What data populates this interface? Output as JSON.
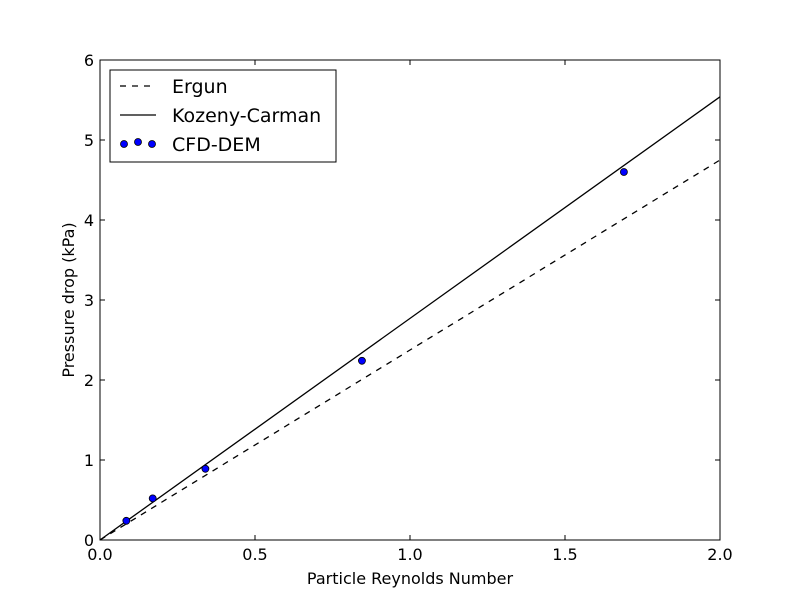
{
  "chart_data": {
    "type": "line",
    "title": "",
    "xlabel": "Particle Reynolds Number",
    "ylabel": "Pressure drop (kPa)",
    "xlim": [
      0.0,
      2.0
    ],
    "ylim": [
      0,
      6
    ],
    "xticks": [
      0.0,
      0.5,
      1.0,
      1.5,
      2.0
    ],
    "xtick_labels": [
      "0.0",
      "0.5",
      "1.0",
      "1.5",
      "2.0"
    ],
    "yticks": [
      0,
      1,
      2,
      3,
      4,
      5,
      6
    ],
    "ytick_labels": [
      "0",
      "1",
      "2",
      "3",
      "4",
      "5",
      "6"
    ],
    "grid": false,
    "legend_position": "top-left",
    "series": [
      {
        "name": "Ergun",
        "kind": "line",
        "style": "dashed",
        "color": "#000000",
        "x": [
          0.0,
          2.0
        ],
        "y": [
          0.0,
          4.75
        ]
      },
      {
        "name": "Kozeny-Carman",
        "kind": "line",
        "style": "solid",
        "color": "#000000",
        "x": [
          0.0,
          2.0
        ],
        "y": [
          0.0,
          5.54
        ]
      },
      {
        "name": "CFD-DEM",
        "kind": "scatter",
        "color": "#0000ff",
        "x": [
          0.085,
          0.17,
          0.34,
          0.845,
          1.69
        ],
        "y": [
          0.24,
          0.52,
          0.89,
          2.24,
          4.6
        ]
      }
    ]
  }
}
